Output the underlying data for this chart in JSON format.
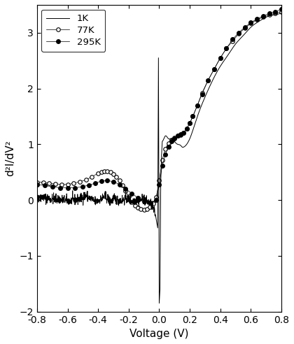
{
  "title": "",
  "xlabel": "Voltage (V)",
  "ylabel": "d²I/dV²",
  "xlim": [
    -0.8,
    0.8
  ],
  "ylim": [
    -2.0,
    3.5
  ],
  "yticks": [
    -2,
    -1,
    0,
    1,
    2,
    3
  ],
  "xticks": [
    -0.8,
    -0.6,
    -0.4,
    -0.2,
    0.0,
    0.2,
    0.4,
    0.6,
    0.8
  ],
  "legend_labels": [
    "1K",
    "77K",
    "295K"
  ],
  "background_color": "#ffffff",
  "line_color": "#000000",
  "curve_1K_v": [
    -0.8,
    -0.75,
    -0.7,
    -0.65,
    -0.6,
    -0.55,
    -0.5,
    -0.48,
    -0.46,
    -0.44,
    -0.42,
    -0.4,
    -0.38,
    -0.36,
    -0.34,
    -0.32,
    -0.3,
    -0.28,
    -0.26,
    -0.24,
    -0.22,
    -0.2,
    -0.18,
    -0.16,
    -0.14,
    -0.12,
    -0.1,
    -0.08,
    -0.06,
    -0.04,
    -0.02,
    -0.01,
    -0.005,
    0.0,
    0.005,
    0.01,
    0.015,
    0.02,
    0.03,
    0.04,
    0.06,
    0.08,
    0.1,
    0.12,
    0.14,
    0.15,
    0.16,
    0.18,
    0.2,
    0.22,
    0.25,
    0.3,
    0.35,
    0.4,
    0.45,
    0.5,
    0.55,
    0.6,
    0.65,
    0.7,
    0.75,
    0.8
  ],
  "curve_1K_y": [
    0.05,
    0.04,
    0.02,
    0.01,
    -0.01,
    0.0,
    0.05,
    0.08,
    0.04,
    0.01,
    -0.03,
    -0.01,
    0.02,
    0.06,
    0.03,
    -0.02,
    0.02,
    0.01,
    -0.01,
    0.0,
    0.02,
    0.01,
    -0.02,
    0.0,
    -0.01,
    0.0,
    0.02,
    -0.03,
    -0.05,
    -0.15,
    -0.3,
    -0.5,
    2.55,
    -1.85,
    -1.6,
    0.3,
    0.8,
    1.05,
    1.1,
    1.15,
    1.1,
    1.1,
    1.05,
    1.0,
    0.98,
    0.95,
    0.95,
    1.0,
    1.1,
    1.25,
    1.5,
    1.85,
    2.15,
    2.4,
    2.6,
    2.8,
    2.95,
    3.1,
    3.2,
    3.28,
    3.32,
    3.35
  ],
  "curve_77K_v": [
    -0.8,
    -0.76,
    -0.72,
    -0.68,
    -0.64,
    -0.6,
    -0.56,
    -0.52,
    -0.48,
    -0.44,
    -0.4,
    -0.38,
    -0.36,
    -0.34,
    -0.32,
    -0.3,
    -0.28,
    -0.26,
    -0.24,
    -0.22,
    -0.2,
    -0.18,
    -0.16,
    -0.14,
    -0.12,
    -0.1,
    -0.08,
    -0.06,
    -0.04,
    -0.02,
    0.0,
    0.02,
    0.04,
    0.06,
    0.08,
    0.1,
    0.12,
    0.14,
    0.16,
    0.18,
    0.2,
    0.22,
    0.25,
    0.28,
    0.32,
    0.36,
    0.4,
    0.44,
    0.48,
    0.52,
    0.56,
    0.6,
    0.64,
    0.68,
    0.72,
    0.76,
    0.8
  ],
  "curve_77K_y": [
    0.32,
    0.32,
    0.3,
    0.29,
    0.28,
    0.28,
    0.3,
    0.33,
    0.36,
    0.42,
    0.48,
    0.5,
    0.52,
    0.51,
    0.5,
    0.47,
    0.42,
    0.35,
    0.26,
    0.16,
    0.06,
    -0.04,
    -0.1,
    -0.14,
    -0.16,
    -0.17,
    -0.16,
    -0.12,
    -0.06,
    0.05,
    0.35,
    0.72,
    0.92,
    1.02,
    1.08,
    1.12,
    1.15,
    1.17,
    1.2,
    1.28,
    1.38,
    1.5,
    1.7,
    1.92,
    2.15,
    2.35,
    2.55,
    2.72,
    2.85,
    2.98,
    3.08,
    3.17,
    3.23,
    3.28,
    3.32,
    3.35,
    3.38
  ],
  "curve_295K_v": [
    -0.8,
    -0.75,
    -0.7,
    -0.65,
    -0.6,
    -0.55,
    -0.5,
    -0.46,
    -0.42,
    -0.38,
    -0.34,
    -0.3,
    -0.26,
    -0.22,
    -0.18,
    -0.14,
    -0.1,
    -0.06,
    -0.02,
    0.0,
    0.02,
    0.04,
    0.06,
    0.08,
    0.1,
    0.12,
    0.14,
    0.16,
    0.18,
    0.2,
    0.22,
    0.25,
    0.28,
    0.32,
    0.36,
    0.4,
    0.44,
    0.48,
    0.52,
    0.56,
    0.6,
    0.64,
    0.68,
    0.72,
    0.76,
    0.8
  ],
  "curve_295K_y": [
    0.28,
    0.26,
    0.24,
    0.22,
    0.22,
    0.22,
    0.24,
    0.27,
    0.3,
    0.34,
    0.35,
    0.33,
    0.28,
    0.2,
    0.12,
    0.04,
    -0.02,
    -0.05,
    0.0,
    0.28,
    0.62,
    0.82,
    0.95,
    1.05,
    1.1,
    1.15,
    1.18,
    1.2,
    1.28,
    1.38,
    1.5,
    1.7,
    1.9,
    2.15,
    2.35,
    2.55,
    2.72,
    2.88,
    3.0,
    3.1,
    3.18,
    3.25,
    3.3,
    3.35,
    3.38,
    3.42
  ]
}
